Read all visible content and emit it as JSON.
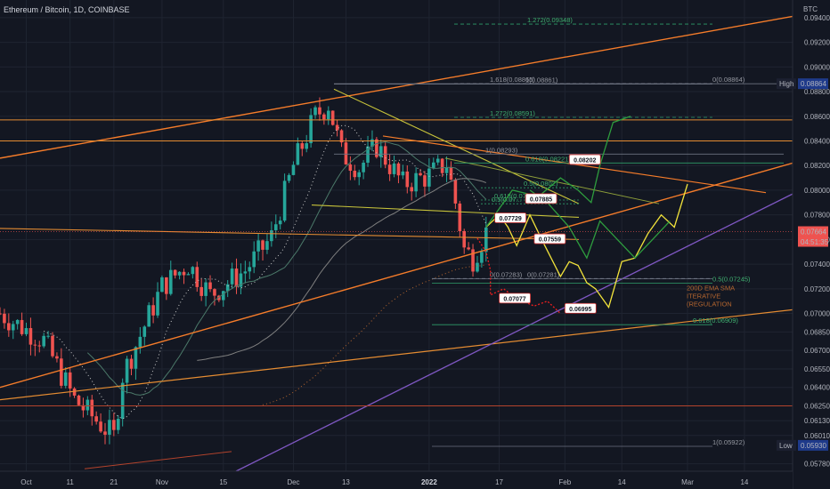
{
  "header": {
    "title": "Ethereum / Bitcoin, 1D, COINBASE",
    "unit": "BTC"
  },
  "price_scale": {
    "ticks": [
      "0.09400",
      "0.09200",
      "0.09000",
      "0.08800",
      "0.08600",
      "0.08400",
      "0.08200",
      "0.08000",
      "0.07800",
      "0.07600",
      "0.07400",
      "0.07200",
      "0.07000",
      "0.06850",
      "0.06700",
      "0.06550",
      "0.06400",
      "0.06250",
      "0.06130",
      "0.06010",
      "0.05780"
    ],
    "high_label": "High",
    "high_value": "0.08864",
    "current_value": "0.07664",
    "countdown": "04:51:35",
    "low_label": "Low",
    "low_value": "0.05930"
  },
  "time_scale": {
    "ticks": [
      "Oct",
      "11",
      "21",
      "Nov",
      "15",
      "Dec",
      "13",
      "2022",
      "17",
      "Feb",
      "14",
      "Mar",
      "14"
    ]
  },
  "fib_labels": [
    "1.272(0.09348)",
    "1.618(0.08865)",
    "1(0.08861)",
    "0(0.08864)",
    "1.272(0.08591)",
    "1(0.08293)",
    "0.618(0.08221)",
    "0.5(0.0802)",
    "0.618(0.07...",
    "0.5(0.07...",
    "0(0.07283)",
    "0(0.07281)",
    "0.5(0.07245)",
    "0.618(0.06909)",
    "1(0.05922)"
  ],
  "callouts": [
    "0.08202",
    "0.07885",
    "0.07729",
    "0.07559",
    "0.07077",
    "0.06995"
  ],
  "annotation_lines": [
    "200D EMA SMA",
    "ITERATIVE",
    "(REGULATION"
  ],
  "colors": {
    "background": "#131722",
    "up": "#26a69a",
    "down": "#ef5350",
    "trendline": "#f57c2a",
    "channel": "#e58c32",
    "purple": "#7e57c2",
    "yellow_path": "#f2e33b",
    "green_path": "#2e9d3e",
    "red_path": "#ef1f1f"
  },
  "chart_data": {
    "type": "candlestick",
    "title": "Ethereum / Bitcoin, 1D, COINBASE",
    "y_unit": "BTC",
    "ylim": [
      0.0572,
      0.095
    ],
    "x_range": [
      "2021-09-25",
      "2022-03-25"
    ],
    "ohlc_anchors": [
      {
        "date": "2021-09-25",
        "close": 0.07
      },
      {
        "date": "2021-10-05",
        "close": 0.0678
      },
      {
        "date": "2021-10-12",
        "close": 0.063
      },
      {
        "date": "2021-10-21",
        "close": 0.06
      },
      {
        "date": "2021-10-23",
        "close": 0.065
      },
      {
        "date": "2021-11-01",
        "close": 0.0722
      },
      {
        "date": "2021-11-07",
        "close": 0.074
      },
      {
        "date": "2021-11-12",
        "close": 0.0715
      },
      {
        "date": "2021-11-20",
        "close": 0.0735
      },
      {
        "date": "2021-11-26",
        "close": 0.0762
      },
      {
        "date": "2021-12-01",
        "close": 0.082
      },
      {
        "date": "2021-12-06",
        "close": 0.086
      },
      {
        "date": "2021-12-09",
        "close": 0.087
      },
      {
        "date": "2021-12-12",
        "close": 0.083
      },
      {
        "date": "2021-12-16",
        "close": 0.0818
      },
      {
        "date": "2021-12-20",
        "close": 0.0836
      },
      {
        "date": "2021-12-26",
        "close": 0.0805
      },
      {
        "date": "2022-01-01",
        "close": 0.0812
      },
      {
        "date": "2022-01-05",
        "close": 0.0822
      },
      {
        "date": "2022-01-07",
        "close": 0.079
      },
      {
        "date": "2022-01-09",
        "close": 0.0752
      },
      {
        "date": "2022-01-11",
        "close": 0.0745
      },
      {
        "date": "2022-01-14",
        "close": 0.0766
      }
    ],
    "key_levels": [
      0.09348,
      0.08864,
      0.08591,
      0.08293,
      0.08221,
      0.07245,
      0.06909,
      0.05922
    ],
    "high": 0.08864,
    "low": 0.0593,
    "last": 0.07664,
    "scenario_targets": [
      0.08202,
      0.07885,
      0.07729,
      0.07559,
      0.07077,
      0.06995
    ]
  }
}
